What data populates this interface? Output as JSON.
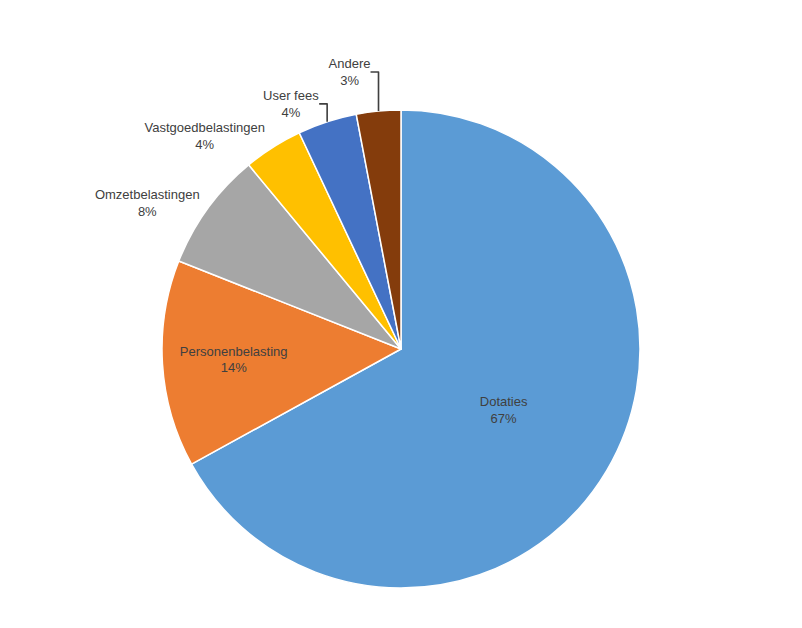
{
  "chart_data": {
    "type": "pie",
    "categories": [
      "Dotaties",
      "Personenbelasting",
      "Omzetbelastingen",
      "Vastgoedbelastingen",
      "User fees",
      "Andere"
    ],
    "values": [
      67,
      14,
      8,
      4,
      4,
      3
    ],
    "value_labels": [
      "67%",
      "14%",
      "8%",
      "4%",
      "4%",
      "3%"
    ],
    "colors": [
      "#5B9BD5",
      "#ED7D31",
      "#A6A6A6",
      "#FFC000",
      "#4472C4",
      "#843C0C"
    ],
    "data_labels": true
  }
}
